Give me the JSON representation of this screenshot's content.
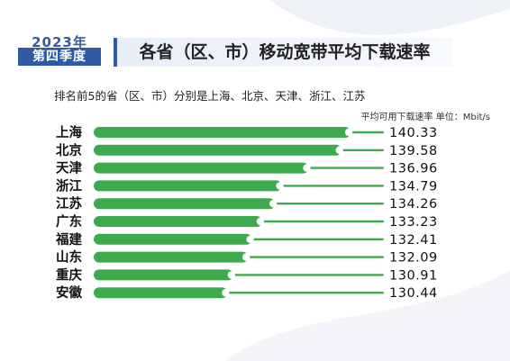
{
  "header": {
    "year": "2023年",
    "quarter": "第四季度",
    "title": "各省（区、市）移动宽带平均下载速率",
    "subtitle": "排名前5的省（区、市）分别是上海、北京、天津、浙江、江苏",
    "unit_note": "平均可用下载速率 单位：Mbit/s"
  },
  "colors": {
    "bar": "#3daa4d",
    "track": "#3daa4d",
    "knob": "#ffffff",
    "accent": "#2e5aa6"
  },
  "chart_data": {
    "type": "bar",
    "orientation": "horizontal",
    "categories": [
      "上海",
      "北京",
      "天津",
      "浙江",
      "江苏",
      "广东",
      "福建",
      "山东",
      "重庆",
      "安徽"
    ],
    "values": [
      140.33,
      139.58,
      136.96,
      134.79,
      134.26,
      133.23,
      132.41,
      132.09,
      130.91,
      130.44
    ],
    "value_labels": [
      "140.33",
      "139.58",
      "136.96",
      "134.79",
      "134.26",
      "133.23",
      "132.41",
      "132.09",
      "130.91",
      "130.44"
    ],
    "xlim": [
      120,
      143
    ],
    "xlabel": "",
    "ylabel": "",
    "grid": false,
    "legend": "none"
  }
}
